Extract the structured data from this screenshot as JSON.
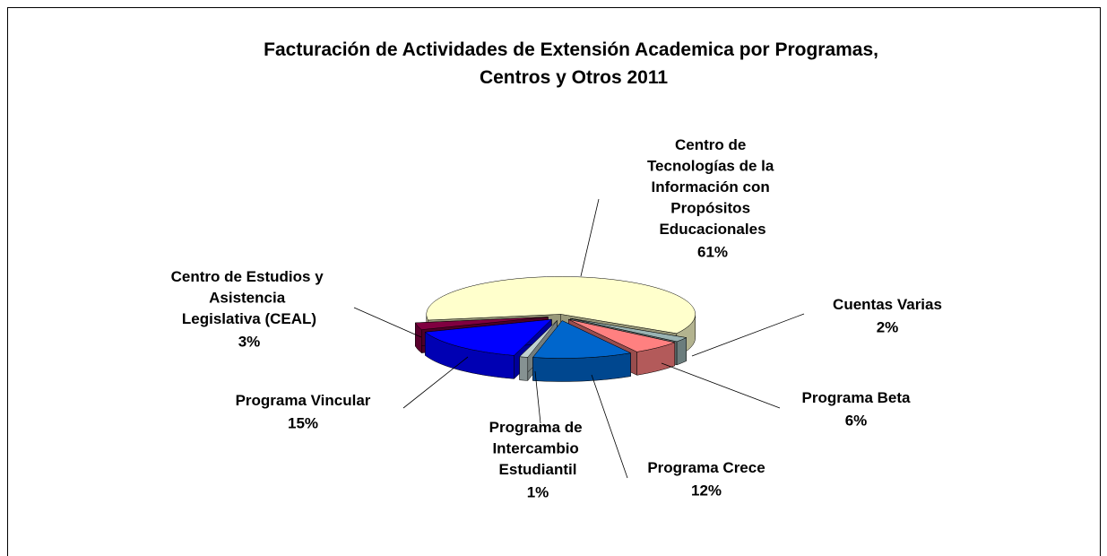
{
  "chart_data": {
    "type": "pie3d",
    "title": "Facturación de Actividades de Extensión Academica por Programas, Centros y Otros 2011",
    "categories": [
      "Centro de Tecnologías de la Información con Propósitos Educacionales",
      "Cuentas Varias",
      "Programa Beta",
      "Programa Crece",
      "Programa de Intercambio Estudiantil",
      "Programa Vincular",
      "Centro de Estudios y Asistencia Legislativa (CEAL)"
    ],
    "values": [
      61,
      2,
      6,
      12,
      1,
      15,
      3
    ],
    "value_labels": [
      "61%",
      "2%",
      "6%",
      "12%",
      "1%",
      "15%",
      "3%"
    ],
    "colors": [
      "#ffffcc",
      "#99b3b3",
      "#ff8080",
      "#0066cc",
      "#c0d0d0",
      "#0000ff",
      "#800040"
    ]
  }
}
